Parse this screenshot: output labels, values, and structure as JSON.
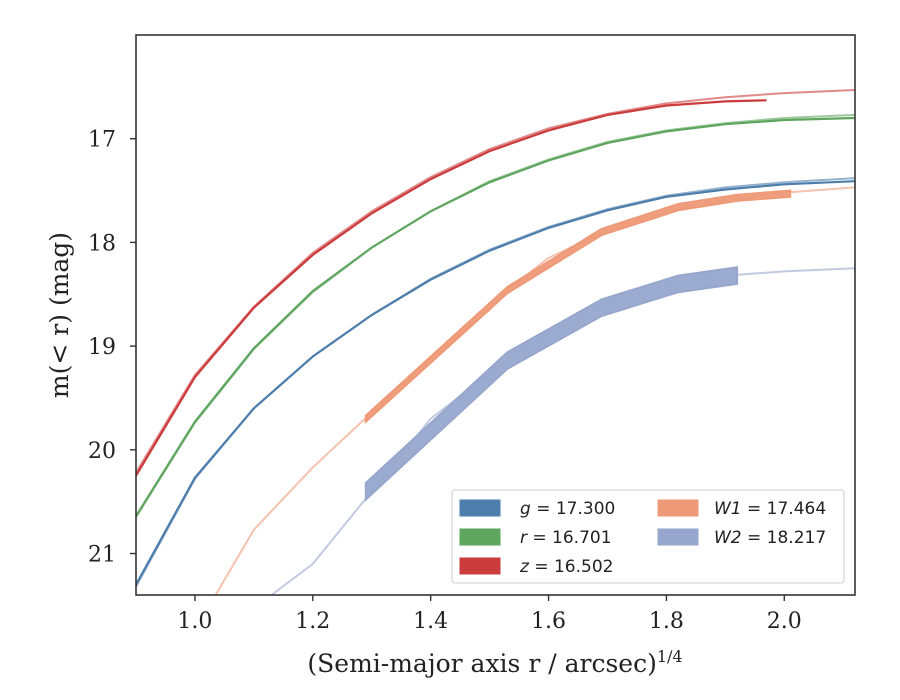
{
  "chart_data": {
    "type": "line",
    "xlabel": "(Semi-major axis r / arcsec)",
    "xlabel_superscript": "1/4",
    "ylabel": "m(< r) (mag)",
    "xlim": [
      0.9,
      2.12
    ],
    "ylim": [
      21.4,
      16.0
    ],
    "y_inverted": true,
    "grid": false,
    "legend_placement": "lower-right",
    "x_ticks": [
      "1.0",
      "1.2",
      "1.4",
      "1.6",
      "1.8",
      "2.0"
    ],
    "y_ticks": [
      "17",
      "18",
      "19",
      "20",
      "21"
    ],
    "series": [
      {
        "name": "g = 17.300",
        "legend_symbol": "g",
        "legend_value": "= 17.300",
        "color": "#4c7dab",
        "model": [
          [
            0.9,
            21.32
          ],
          [
            1.0,
            20.28
          ],
          [
            1.1,
            19.6
          ],
          [
            1.2,
            19.1
          ],
          [
            1.3,
            18.7
          ],
          [
            1.4,
            18.35
          ],
          [
            1.5,
            18.07
          ],
          [
            1.6,
            17.85
          ],
          [
            1.7,
            17.68
          ],
          [
            1.8,
            17.55
          ],
          [
            1.9,
            17.47
          ],
          [
            2.0,
            17.42
          ],
          [
            2.12,
            17.38
          ]
        ],
        "measured": [
          [
            0.9,
            21.3
          ],
          [
            1.0,
            20.27
          ],
          [
            1.1,
            19.6
          ],
          [
            1.2,
            19.1
          ],
          [
            1.3,
            18.7
          ],
          [
            1.4,
            18.36
          ],
          [
            1.5,
            18.08
          ],
          [
            1.6,
            17.86
          ],
          [
            1.7,
            17.69
          ],
          [
            1.8,
            17.56
          ],
          [
            1.9,
            17.49
          ],
          [
            2.0,
            17.44
          ],
          [
            2.12,
            17.41
          ]
        ]
      },
      {
        "name": "r = 16.701",
        "legend_symbol": "r",
        "legend_value": "= 16.701",
        "color": "#5ea55e",
        "model": [
          [
            0.9,
            20.65
          ],
          [
            1.0,
            19.74
          ],
          [
            1.1,
            19.03
          ],
          [
            1.2,
            18.48
          ],
          [
            1.3,
            18.05
          ],
          [
            1.4,
            17.7
          ],
          [
            1.5,
            17.41
          ],
          [
            1.6,
            17.2
          ],
          [
            1.7,
            17.03
          ],
          [
            1.8,
            16.92
          ],
          [
            1.9,
            16.85
          ],
          [
            2.0,
            16.8
          ],
          [
            2.12,
            16.77
          ]
        ],
        "measured": [
          [
            0.9,
            20.64
          ],
          [
            1.0,
            19.73
          ],
          [
            1.1,
            19.02
          ],
          [
            1.2,
            18.47
          ],
          [
            1.3,
            18.05
          ],
          [
            1.4,
            17.7
          ],
          [
            1.5,
            17.42
          ],
          [
            1.6,
            17.21
          ],
          [
            1.7,
            17.04
          ],
          [
            1.8,
            16.93
          ],
          [
            1.9,
            16.86
          ],
          [
            2.0,
            16.82
          ],
          [
            2.12,
            16.8
          ]
        ]
      },
      {
        "name": "z = 16.502",
        "legend_symbol": "z",
        "legend_value": "= 16.502",
        "color": "#cc3b3b",
        "model": [
          [
            0.9,
            20.22
          ],
          [
            1.0,
            19.28
          ],
          [
            1.1,
            18.62
          ],
          [
            1.2,
            18.1
          ],
          [
            1.3,
            17.7
          ],
          [
            1.4,
            17.37
          ],
          [
            1.5,
            17.1
          ],
          [
            1.6,
            16.9
          ],
          [
            1.7,
            16.76
          ],
          [
            1.8,
            16.66
          ],
          [
            1.9,
            16.6
          ],
          [
            2.0,
            16.56
          ],
          [
            2.12,
            16.53
          ]
        ],
        "measured": [
          [
            0.9,
            20.25
          ],
          [
            1.0,
            19.3
          ],
          [
            1.1,
            18.63
          ],
          [
            1.2,
            18.12
          ],
          [
            1.3,
            17.72
          ],
          [
            1.4,
            17.39
          ],
          [
            1.5,
            17.12
          ],
          [
            1.6,
            16.92
          ],
          [
            1.7,
            16.77
          ],
          [
            1.8,
            16.68
          ],
          [
            1.9,
            16.64
          ],
          [
            1.97,
            16.63
          ]
        ]
      },
      {
        "name": "W1 = 17.464",
        "legend_symbol": "W1",
        "legend_value": "= 17.464",
        "color": "#ee9a78",
        "model": [
          [
            1.035,
            21.4
          ],
          [
            1.1,
            20.77
          ],
          [
            1.2,
            20.17
          ],
          [
            1.3,
            19.64
          ],
          [
            1.4,
            19.12
          ],
          [
            1.5,
            18.65
          ],
          [
            1.53,
            18.46
          ],
          [
            1.6,
            18.15
          ],
          [
            1.7,
            17.88
          ],
          [
            1.8,
            17.7
          ],
          [
            1.9,
            17.59
          ],
          [
            2.0,
            17.52
          ],
          [
            2.12,
            17.47
          ]
        ],
        "measured": [
          [
            1.29,
            19.7
          ],
          [
            1.53,
            18.46
          ],
          [
            1.69,
            17.9
          ],
          [
            1.82,
            17.66
          ],
          [
            1.92,
            17.57
          ],
          [
            2.01,
            17.53
          ]
        ],
        "band": 0.03
      },
      {
        "name": "W2 = 18.217",
        "legend_symbol": "W2",
        "legend_value": "= 18.217",
        "color": "#97a6cd",
        "model": [
          [
            1.13,
            21.4
          ],
          [
            1.2,
            21.1
          ],
          [
            1.3,
            20.4
          ],
          [
            1.4,
            19.7
          ],
          [
            1.53,
            19.13
          ],
          [
            1.6,
            18.88
          ],
          [
            1.7,
            18.6
          ],
          [
            1.82,
            18.4
          ],
          [
            1.9,
            18.32
          ],
          [
            2.0,
            18.28
          ],
          [
            2.12,
            18.25
          ]
        ],
        "measured": [
          [
            1.29,
            20.4
          ],
          [
            1.53,
            19.14
          ],
          [
            1.69,
            18.63
          ],
          [
            1.82,
            18.4
          ],
          [
            1.92,
            18.32
          ]
        ],
        "band": 0.08
      }
    ]
  }
}
